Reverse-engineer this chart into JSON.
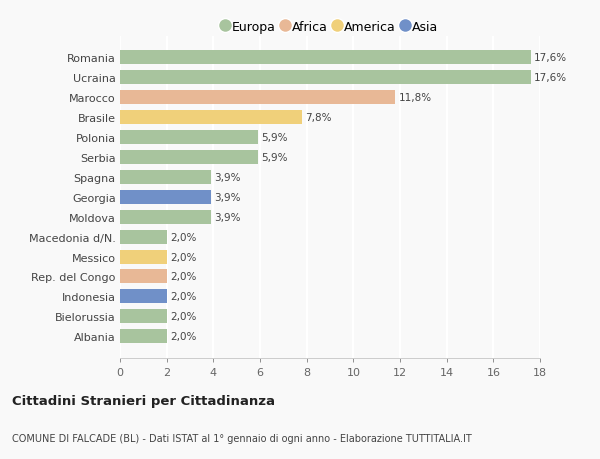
{
  "categories": [
    "Romania",
    "Ucraina",
    "Marocco",
    "Brasile",
    "Polonia",
    "Serbia",
    "Spagna",
    "Georgia",
    "Moldova",
    "Macedonia d/N.",
    "Messico",
    "Rep. del Congo",
    "Indonesia",
    "Bielorussia",
    "Albania"
  ],
  "values": [
    17.6,
    17.6,
    11.8,
    7.8,
    5.9,
    5.9,
    3.9,
    3.9,
    3.9,
    2.0,
    2.0,
    2.0,
    2.0,
    2.0,
    2.0
  ],
  "labels": [
    "17,6%",
    "17,6%",
    "11,8%",
    "7,8%",
    "5,9%",
    "5,9%",
    "3,9%",
    "3,9%",
    "3,9%",
    "2,0%",
    "2,0%",
    "2,0%",
    "2,0%",
    "2,0%",
    "2,0%"
  ],
  "continents": [
    "Europa",
    "Europa",
    "Africa",
    "America",
    "Europa",
    "Europa",
    "Europa",
    "Asia",
    "Europa",
    "Europa",
    "America",
    "Africa",
    "Asia",
    "Europa",
    "Europa"
  ],
  "colors": {
    "Europa": "#a8c49e",
    "Africa": "#e8b896",
    "America": "#f0d07a",
    "Asia": "#7090c8"
  },
  "legend_labels": [
    "Europa",
    "Africa",
    "America",
    "Asia"
  ],
  "legend_colors": [
    "#a8c49e",
    "#e8b896",
    "#f0d07a",
    "#7090c8"
  ],
  "xlim": [
    0,
    18
  ],
  "xticks": [
    0,
    2,
    4,
    6,
    8,
    10,
    12,
    14,
    16,
    18
  ],
  "title": "Cittadini Stranieri per Cittadinanza",
  "subtitle": "COMUNE DI FALCADE (BL) - Dati ISTAT al 1° gennaio di ogni anno - Elaborazione TUTTITALIA.IT",
  "background_color": "#f9f9f9",
  "grid_color": "#ffffff"
}
